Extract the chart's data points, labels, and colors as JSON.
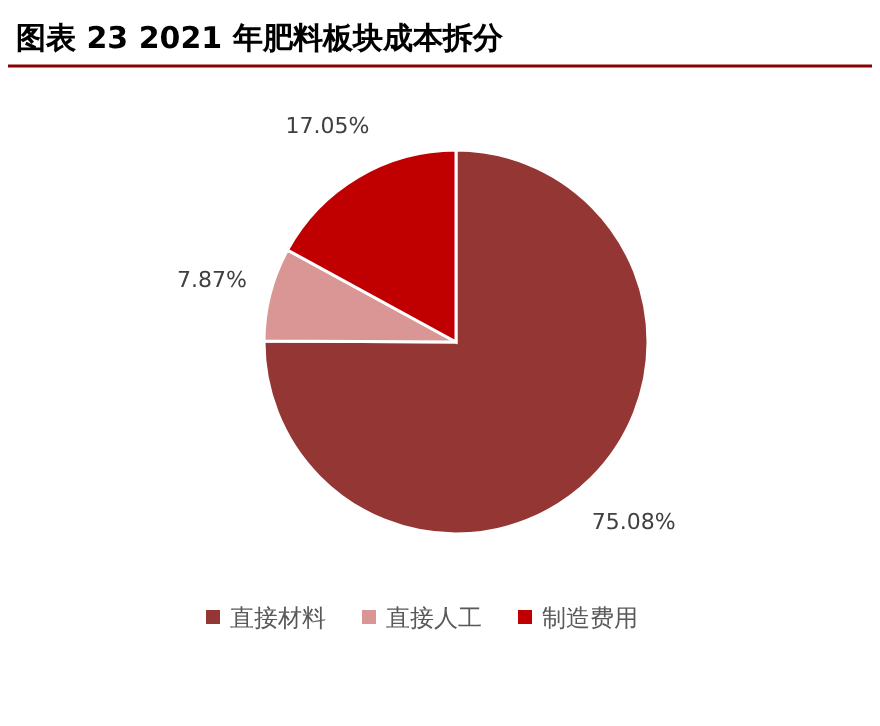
{
  "chart_data": {
    "type": "pie",
    "title": "图表 23 2021 年肥料板块成本拆分",
    "categories": [
      "直接材料",
      "直接人工",
      "制造费用"
    ],
    "values": [
      75.08,
      7.87,
      17.05
    ],
    "value_labels": [
      "75.08%",
      "7.87%",
      "17.05%"
    ],
    "colors": [
      "#943634",
      "#d99694",
      "#c00000"
    ],
    "legend": "bottom"
  }
}
